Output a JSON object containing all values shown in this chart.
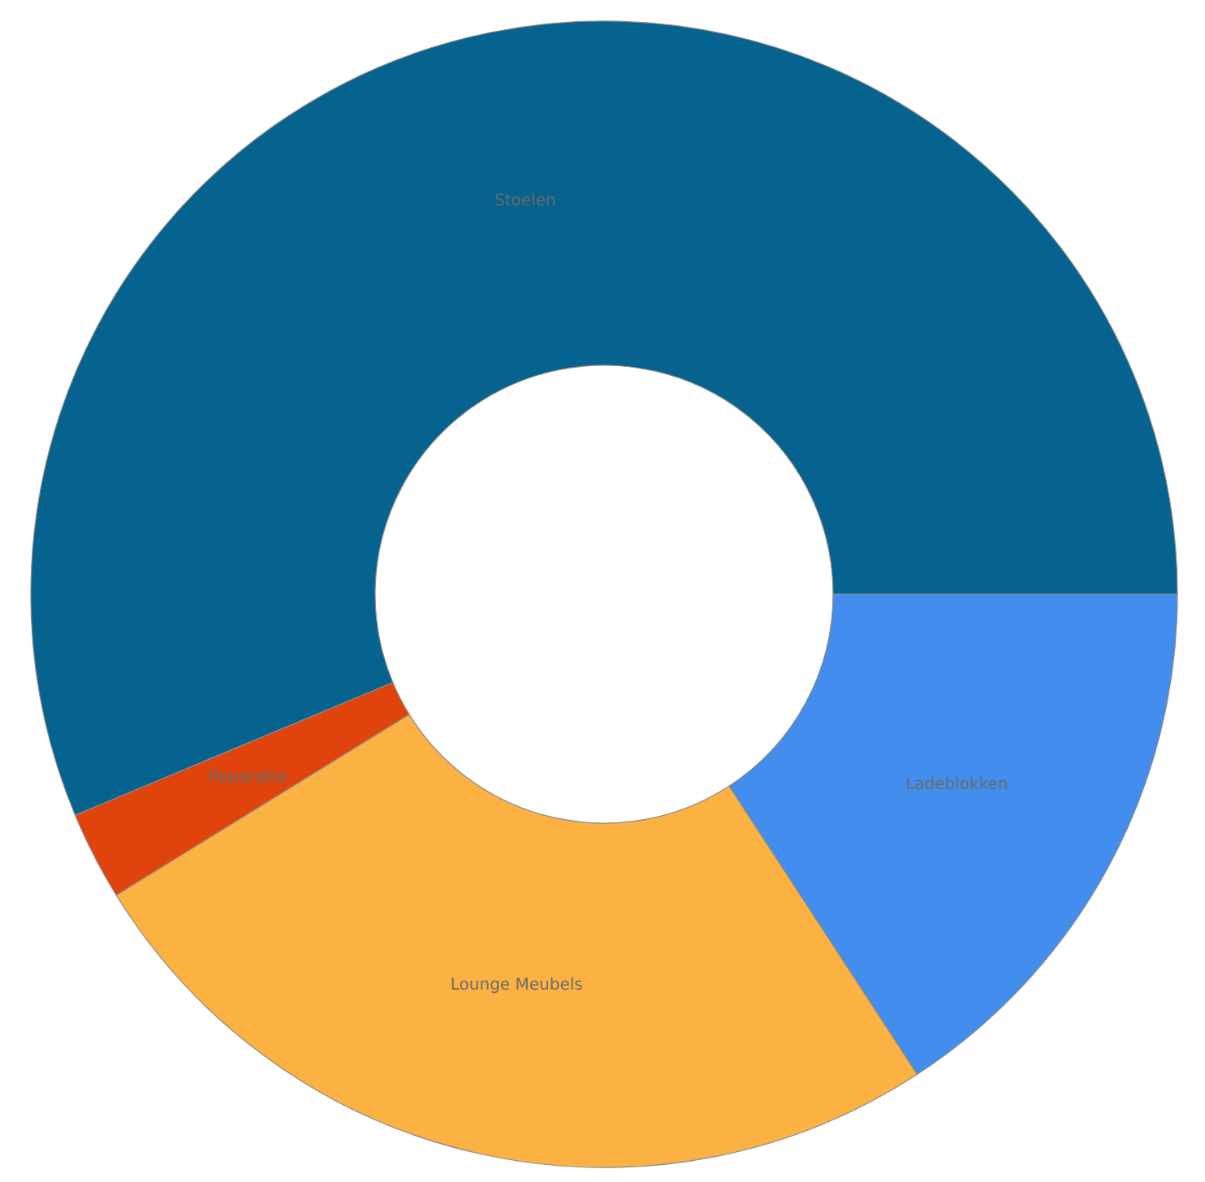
{
  "chart_data": {
    "type": "donut",
    "categories": [
      "Stoelen",
      "Reparatie",
      "Lounge Meubels",
      "Ladeblokken"
    ],
    "values": [
      56.3,
      2.5,
      25.4,
      15.8
    ],
    "colors": [
      "#06628f",
      "#e0430b",
      "#fbb242",
      "#428ded"
    ],
    "legend": false
  }
}
